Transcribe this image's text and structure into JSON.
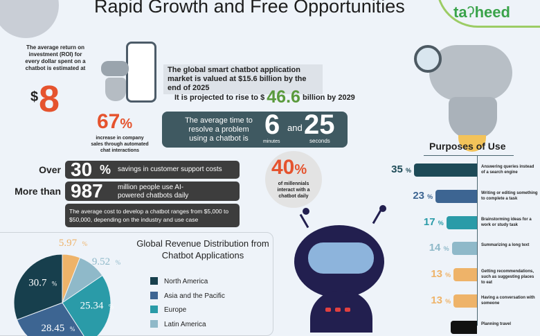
{
  "header": {
    "title": "Rapid Growth and Free Opportunities",
    "logo_text": "ta?heed"
  },
  "roi": {
    "text": "The average return on investment (ROI) for every dollar spent on a chatbot is estimated at",
    "currency": "$",
    "value": "8"
  },
  "market": {
    "line1": "The global smart chatbot application market is valued at $15.6 billion by the end of 2025",
    "proj_prefix": "It is projected to rise to $",
    "proj_value": "46.6",
    "proj_suffix": "billion by 2029"
  },
  "sales": {
    "value": "67",
    "unit": "%",
    "text": "increase in company sales through automated chat interactions"
  },
  "resolve": {
    "text": "The average time to resolve a problem using a chatbot is",
    "minutes": "6",
    "minutes_label": "minutes",
    "and": "and",
    "seconds": "25",
    "seconds_label": "seconds"
  },
  "savings": {
    "prefix": "Over",
    "value": "30",
    "unit": "%",
    "text": "savings in customer support costs"
  },
  "users": {
    "prefix": "More than",
    "value": "987",
    "text": "million people use AI-powered chatbots daily"
  },
  "cost": {
    "text": "The average cost to develop a chatbot ranges from $5,000 to $50,000, depending on the industry and use case"
  },
  "millennials": {
    "value": "40",
    "unit": "%",
    "text": "of millennials interact with a chatbot daily"
  },
  "purposes": {
    "title": "Purposes of Use",
    "unit": "%",
    "items": [
      {
        "value": 35,
        "label": "Answering queries instead of a search engine",
        "color": "#1d4a57"
      },
      {
        "value": 23,
        "label": "Writing or editing something to complete a task",
        "color": "#3d6592"
      },
      {
        "value": 17,
        "label": "Brainstorming ideas for a work or study task",
        "color": "#2a9ba8"
      },
      {
        "value": 14,
        "label": "Summarizing a long text",
        "color": "#8fb9c9"
      },
      {
        "value": 13,
        "label": "Getting recommendations, such as suggesting places to eat",
        "color": "#eeb369"
      },
      {
        "value": 13,
        "label": "Having a conversation with someone",
        "color": "#eeb369"
      },
      {
        "value": null,
        "label": "Planning travel",
        "color": "#111111"
      }
    ]
  },
  "chart_data": {
    "type": "pie",
    "title": "Global Revenue Distribution from Chatbot Applications",
    "unit": "%",
    "slices": [
      {
        "name": "",
        "value": 5.97,
        "label": "5.97",
        "color": "#eeb369"
      },
      {
        "name": "Latin America",
        "value": 9.52,
        "label": "9.52",
        "color": "#8fb9c9"
      },
      {
        "name": "Europe",
        "value": 25.34,
        "label": "25.34",
        "color": "#2a9ba8"
      },
      {
        "name": "Asia and the Pacific",
        "value": 28.45,
        "label": "28.45",
        "color": "#3d6592"
      },
      {
        "name": "North America",
        "value": 30.7,
        "label": "30.7",
        "color": "#173f4d"
      }
    ],
    "legend": [
      "North America",
      "Asia and the Pacific",
      "Europe",
      "Latin America"
    ],
    "legend_placement": "right"
  }
}
